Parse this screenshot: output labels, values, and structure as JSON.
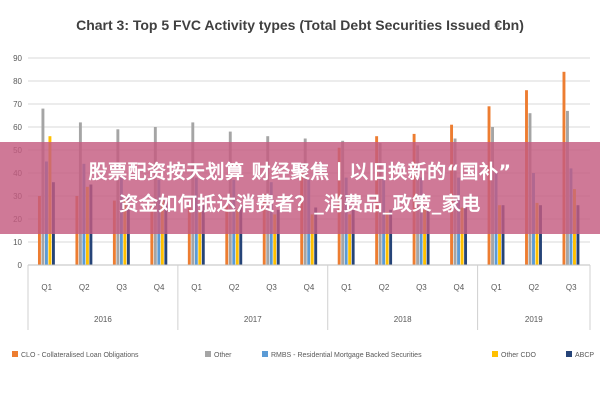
{
  "chart_data": {
    "type": "bar",
    "title": "Chart 3: Top 5 FVC Activity types (Total Debt Securities Issued €bn)",
    "ylim": [
      0,
      90
    ],
    "yticks": [
      0,
      10,
      20,
      30,
      40,
      50,
      60,
      70,
      80,
      90
    ],
    "grid": true,
    "legend_position": "bottom",
    "categories": [
      "Q1",
      "Q2",
      "Q3",
      "Q4",
      "Q1",
      "Q2",
      "Q3",
      "Q4",
      "Q1",
      "Q2",
      "Q3",
      "Q4",
      "Q1",
      "Q2",
      "Q3"
    ],
    "groups": [
      {
        "label": "2016",
        "count": 4
      },
      {
        "label": "2017",
        "count": 4
      },
      {
        "label": "2018",
        "count": 4
      },
      {
        "label": "2019",
        "count": 3
      }
    ],
    "series": [
      {
        "name": "CLO - Collateralised Loan Obligations",
        "color": "#ed7d31",
        "values": [
          30,
          30,
          28,
          27,
          25,
          26,
          31,
          40,
          51,
          56,
          57,
          61,
          69,
          76,
          84
        ]
      },
      {
        "name": "Other",
        "color": "#a5a5a5",
        "values": [
          68,
          62,
          59,
          60,
          62,
          58,
          56,
          55,
          54,
          53,
          52,
          55,
          60,
          66,
          67
        ]
      },
      {
        "name": "RMBS - Residential Mortgage Backed Securities",
        "color": "#5b9bd5",
        "values": [
          45,
          44,
          38,
          37,
          38,
          37,
          36,
          37,
          38,
          38,
          38,
          38,
          40,
          40,
          42
        ]
      },
      {
        "name": "Other CDO",
        "color": "#ffc000",
        "values": [
          56,
          34,
          28,
          28,
          24,
          24,
          22,
          22,
          22,
          23,
          24,
          25,
          26,
          27,
          33
        ]
      },
      {
        "name": "ABCP",
        "color": "#264478",
        "values": [
          36,
          35,
          30,
          28,
          26,
          26,
          24,
          25,
          24,
          24,
          24,
          25,
          26,
          26,
          26
        ]
      }
    ]
  },
  "banner": {
    "line1": "股票配资按天划算 财经聚焦丨以旧换新的“国补”",
    "line2": "资金如何抵达消费者？_消费品_政策_家电"
  }
}
